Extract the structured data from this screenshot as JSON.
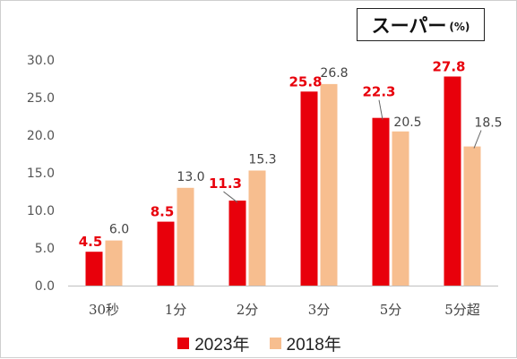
{
  "title": {
    "main": "スーパー",
    "unit": "(%)"
  },
  "legend": {
    "items": [
      {
        "label": "2023年",
        "color": "#e8000b"
      },
      {
        "label": "2018年",
        "color": "#f7be8f"
      }
    ]
  },
  "chart_data": {
    "type": "bar",
    "categories": [
      "30秒",
      "1分",
      "2分",
      "3分",
      "5分",
      "5分超"
    ],
    "series": [
      {
        "name": "2023年",
        "values": [
          4.5,
          8.5,
          11.3,
          25.8,
          22.3,
          27.8
        ],
        "color": "#e8000b",
        "label_color": "#e8000b"
      },
      {
        "name": "2018年",
        "values": [
          6.0,
          13.0,
          15.3,
          26.8,
          20.5,
          18.5
        ],
        "color": "#f7be8f",
        "label_color": "#444444"
      }
    ],
    "value_labels": {
      "2023年": [
        "4.5",
        "8.5",
        "11.3",
        "25.8",
        "22.3",
        "27.8"
      ],
      "2018年": [
        "6.0",
        "13.0",
        "15.3",
        "26.8",
        "20.5",
        "18.5"
      ]
    },
    "ylim": [
      0,
      30
    ],
    "yticks": [
      "0.0",
      "5.0",
      "10.0",
      "15.0",
      "20.0",
      "25.0",
      "30.0"
    ],
    "grid": false,
    "legend_position": "bottom"
  }
}
